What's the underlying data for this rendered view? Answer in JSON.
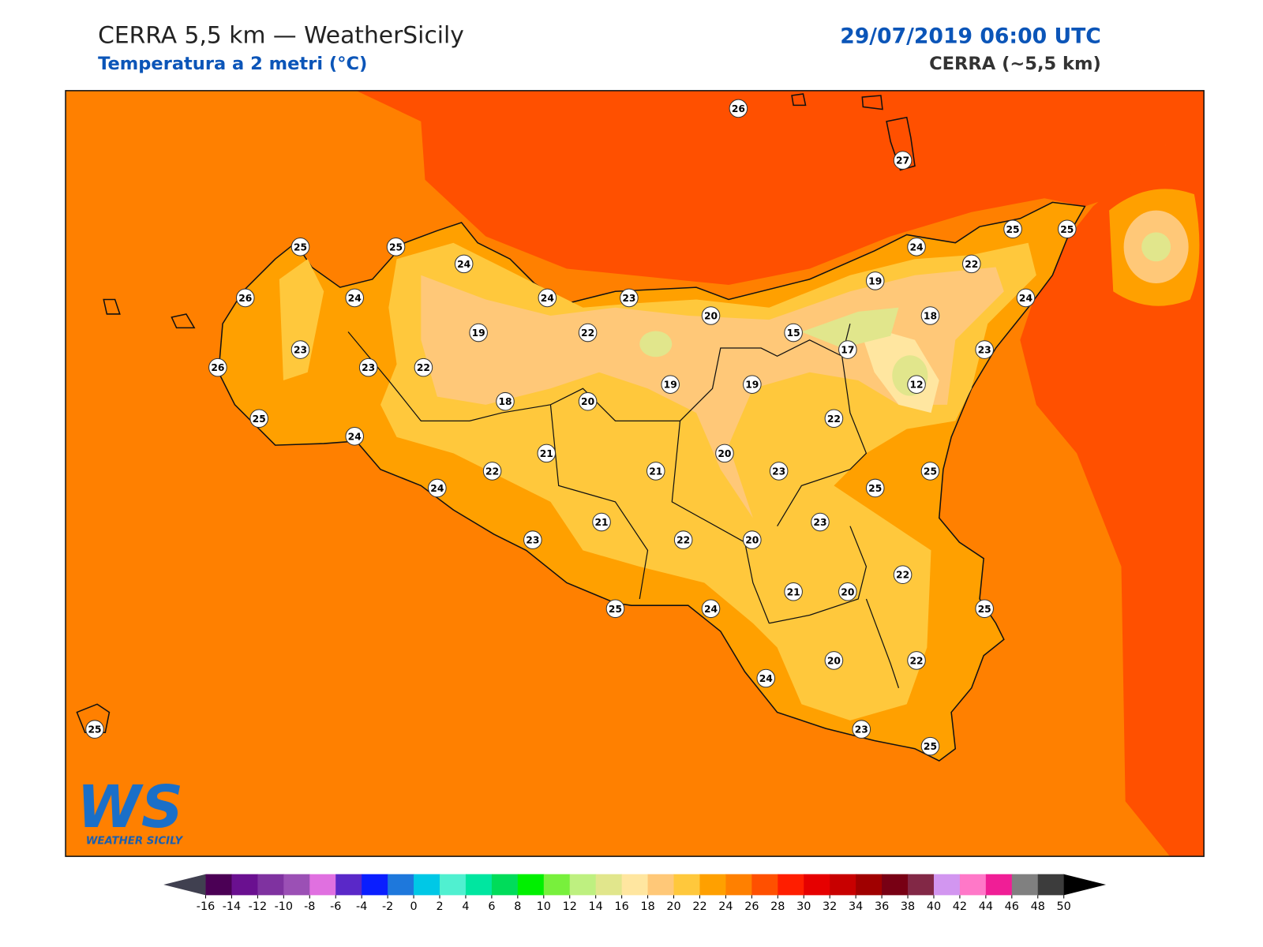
{
  "header": {
    "title": "CERRA 5,5 km — WeatherSicily",
    "subtitle": "Temperatura a 2 metri (°C)",
    "datetime": "29/07/2019 06:00 UTC",
    "model": "CERRA (~5,5 km)"
  },
  "stations": [
    26,
    27,
    25,
    25,
    24,
    24,
    25,
    25,
    22,
    26,
    24,
    24,
    23,
    19,
    20,
    18,
    24,
    23,
    19,
    22,
    15,
    17,
    23,
    26,
    23,
    22,
    19,
    19,
    12,
    18,
    20,
    25,
    22,
    24,
    21,
    20,
    22,
    21,
    23,
    25,
    24,
    25,
    21,
    23,
    23,
    22,
    20,
    22,
    21,
    20,
    25,
    24,
    25,
    20,
    22,
    24,
    25,
    23,
    25
  ],
  "colorbar": {
    "ticks": [
      -16,
      -14,
      -12,
      -10,
      -8,
      -6,
      -4,
      -2,
      0,
      2,
      4,
      6,
      8,
      10,
      12,
      14,
      16,
      18,
      20,
      22,
      24,
      26,
      28,
      30,
      32,
      34,
      36,
      38,
      40,
      42,
      44,
      46,
      48,
      50
    ],
    "colors": [
      "#4b0055",
      "#6a1090",
      "#7f32a0",
      "#9b50b5",
      "#e070e0",
      "#5a28c8",
      "#0a1eff",
      "#1e78dc",
      "#00c8e6",
      "#50f0d0",
      "#00e6a0",
      "#00dc5a",
      "#00f000",
      "#78f03c",
      "#bef080",
      "#e1e68c",
      "#ffe6a0",
      "#ffc878",
      "#ffc83c",
      "#ffa000",
      "#ff8000",
      "#ff5000",
      "#ff1e00",
      "#e60000",
      "#c80000",
      "#a00000",
      "#780014",
      "#822846",
      "#d296f0",
      "#ff78c8",
      "#f01e96",
      "#808080",
      "#3c3c3c"
    ],
    "under_color": "#404050",
    "over_color": "#000000"
  },
  "logo": {
    "mark": "WS",
    "text": "WEATHER SICILY"
  }
}
